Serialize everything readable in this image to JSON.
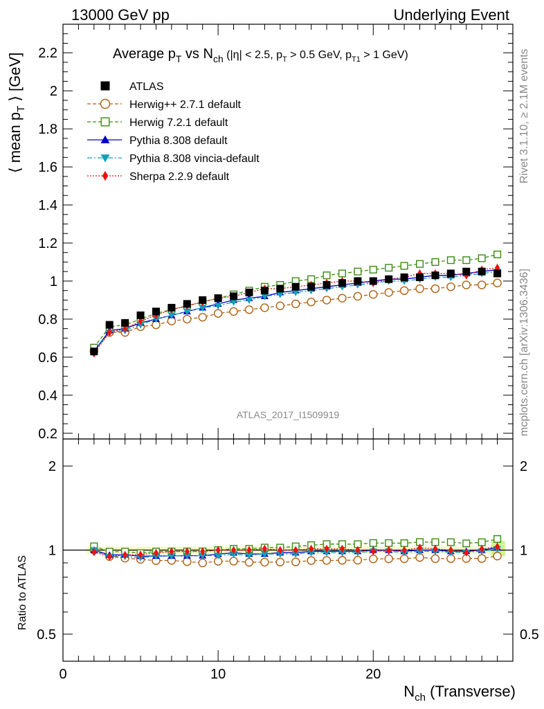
{
  "header": {
    "left": "13000 GeV pp",
    "right": "Underlying Event"
  },
  "side": {
    "rivet": "Rivet 3.1.10, ≥ 2.1M events",
    "mcplots": "mcplots.cern.ch [arXiv:1306.3436]"
  },
  "watermark": "ATLAS_2017_I1509919",
  "chart_data": {
    "type": "scatter",
    "title": "Average p_T vs N_ch (|η| < 2.5, p_T > 0.5 GeV, p_T1 > 1 GeV)",
    "title_parts": {
      "a": "Average p",
      "a_sub": "T",
      "b": " vs N",
      "b_sub": "ch",
      "c": " (|η| < 2.5, p",
      "c_sub": "T",
      "d": " > 0.5 GeV, p",
      "d_sub": "T1",
      "e": " > 1 GeV)"
    },
    "ylabel": "⟨ mean p_T ⟩ [GeV]",
    "ylabel_parts": {
      "a": "⟨ mean p",
      "sub": "T",
      "b": " ⟩ [GeV]"
    },
    "xlabel": "N_ch (Transverse)",
    "xlabel_parts": {
      "a": "N",
      "sub": "ch",
      "b": " (Transverse)"
    },
    "ratio_ylabel": "Ratio to ATLAS",
    "xlim": [
      0,
      29
    ],
    "ylim": [
      0.17,
      2.35
    ],
    "ratio_ylim": [
      0.4,
      2.5
    ],
    "ratio_scale": "log",
    "x_ticks": [
      0,
      10,
      20
    ],
    "y_ticks": [
      0.2,
      0.4,
      0.6,
      0.8,
      1,
      1.2,
      1.4,
      1.6,
      1.8,
      2,
      2.2
    ],
    "y_tick_labels": [
      "0.2",
      "0.4",
      "0.6",
      "0.8",
      "1",
      "1.2",
      "1.4",
      "1.6",
      "1.8",
      "2",
      "2.2"
    ],
    "ratio_ticks": [
      0.5,
      1,
      2
    ],
    "ratio_tick_labels": [
      "0.5",
      "1",
      "2"
    ],
    "x": [
      2,
      3,
      4,
      5,
      6,
      7,
      8,
      9,
      10,
      11,
      12,
      13,
      14,
      15,
      16,
      17,
      18,
      19,
      20,
      21,
      22,
      23,
      24,
      25,
      26,
      27,
      28
    ],
    "legend_position": "top-left",
    "series": [
      {
        "name": "ATLAS",
        "color": "#000000",
        "marker": "square-filled",
        "dash": "none",
        "values": [
          0.63,
          0.77,
          0.78,
          0.82,
          0.84,
          0.86,
          0.88,
          0.9,
          0.91,
          0.92,
          0.94,
          0.95,
          0.96,
          0.97,
          0.97,
          0.98,
          0.99,
          1.0,
          1.0,
          1.01,
          1.02,
          1.02,
          1.03,
          1.04,
          1.05,
          1.05,
          1.04
        ]
      },
      {
        "name": "Herwig++ 2.7.1 default",
        "color": "#b05f10",
        "marker": "circle-open",
        "dash": "5,3",
        "values": [
          0.63,
          0.73,
          0.73,
          0.76,
          0.77,
          0.79,
          0.8,
          0.81,
          0.83,
          0.84,
          0.85,
          0.86,
          0.87,
          0.88,
          0.89,
          0.9,
          0.91,
          0.92,
          0.93,
          0.94,
          0.95,
          0.96,
          0.96,
          0.97,
          0.98,
          0.98,
          0.99
        ]
      },
      {
        "name": "Herwig 7.2.1 default",
        "color": "#3a8a10",
        "marker": "square-open",
        "dash": "5,3",
        "values": [
          0.65,
          0.76,
          0.77,
          0.8,
          0.83,
          0.85,
          0.87,
          0.89,
          0.91,
          0.93,
          0.95,
          0.97,
          0.98,
          1.0,
          1.01,
          1.03,
          1.04,
          1.05,
          1.06,
          1.07,
          1.08,
          1.09,
          1.1,
          1.11,
          1.11,
          1.12,
          1.14
        ]
      },
      {
        "name": "Pythia 8.308 default",
        "color": "#0000cc",
        "marker": "triangle-up",
        "dash": "none",
        "values": [
          0.63,
          0.74,
          0.75,
          0.78,
          0.8,
          0.82,
          0.84,
          0.86,
          0.88,
          0.9,
          0.91,
          0.92,
          0.94,
          0.95,
          0.96,
          0.97,
          0.98,
          0.99,
          1.0,
          1.01,
          1.01,
          1.02,
          1.03,
          1.03,
          1.04,
          1.05,
          1.06
        ]
      },
      {
        "name": "Pythia 8.308 vincia-default",
        "color": "#11a0bb",
        "marker": "triangle-down",
        "dash": "7,3,2,3",
        "values": [
          0.63,
          0.73,
          0.74,
          0.77,
          0.8,
          0.82,
          0.84,
          0.86,
          0.87,
          0.89,
          0.9,
          0.92,
          0.93,
          0.94,
          0.95,
          0.96,
          0.97,
          0.98,
          0.99,
          1.0,
          1.0,
          1.01,
          1.02,
          1.02,
          1.03,
          1.04,
          1.05
        ]
      },
      {
        "name": "Sherpa 2.2.9 default",
        "color": "#ee1111",
        "marker": "diamond",
        "dash": "2,2",
        "values": [
          0.62,
          0.73,
          0.75,
          0.79,
          0.82,
          0.85,
          0.87,
          0.89,
          0.91,
          0.92,
          0.94,
          0.96,
          0.96,
          0.97,
          0.98,
          0.99,
          1.0,
          1.0,
          0.99,
          1.01,
          1.02,
          1.04,
          1.04,
          1.04,
          1.03,
          1.06,
          1.07
        ]
      }
    ]
  }
}
